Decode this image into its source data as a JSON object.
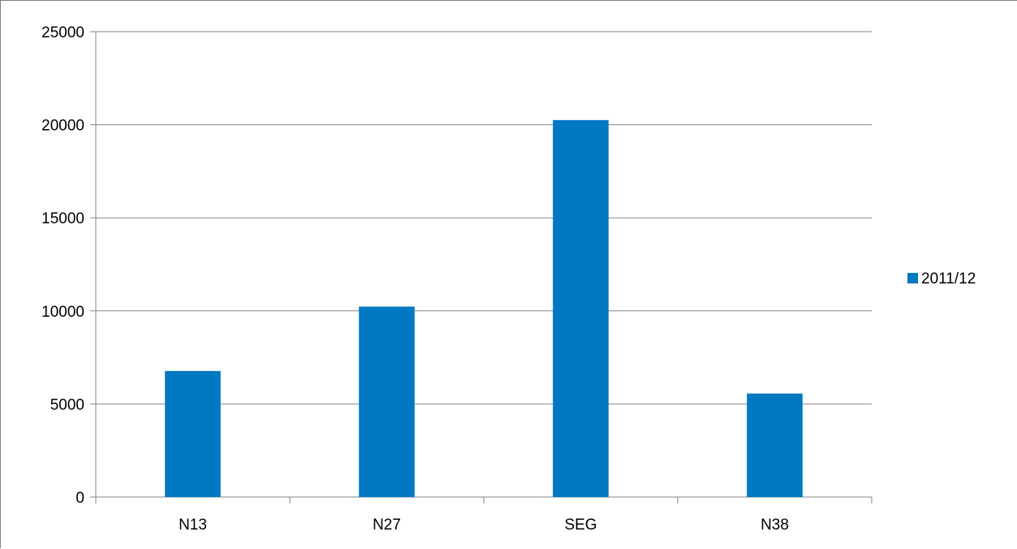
{
  "chart_data": {
    "type": "bar",
    "categories": [
      "N13",
      "N27",
      "SEG",
      "N38"
    ],
    "series": [
      {
        "name": "2011/12",
        "values": [
          6770,
          10230,
          20250,
          5560
        ],
        "color": "#0078c2"
      }
    ],
    "ylim": [
      0,
      25000
    ],
    "yticks": [
      "0",
      "5000",
      "10000",
      "15000",
      "20000",
      "25000"
    ],
    "grid": true,
    "legend_position": "right",
    "gridline_color": "#868686"
  }
}
